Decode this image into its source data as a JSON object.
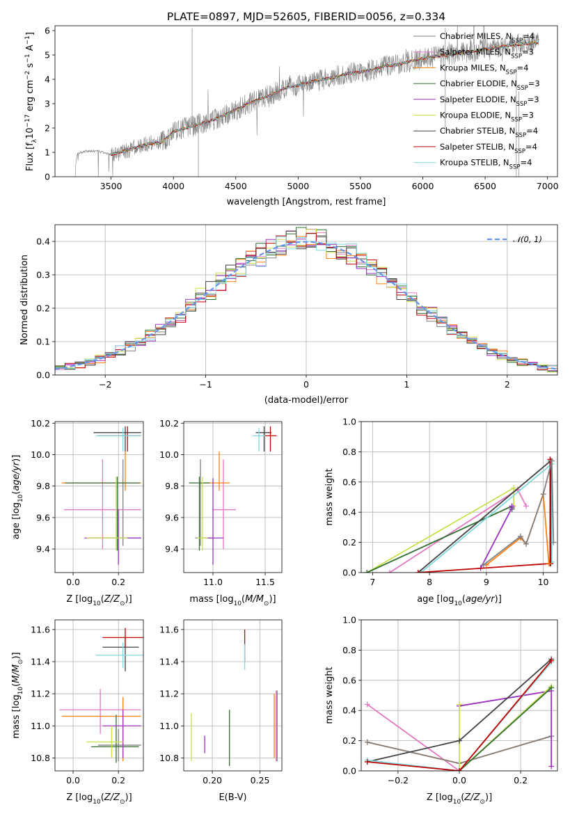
{
  "title": "PLATE=0897, MJD=52605, FIBERID=0056, z=0.334",
  "colors": {
    "chabrier_miles": "#7f7f7f",
    "salpeter_miles": "#e377c2",
    "kroupa_miles": "#ff7f0e",
    "chabrier_elodie": "#2f6f2f",
    "salpeter_elodie": "#9b30c0",
    "kroupa_elodie": "#c8e04a",
    "chabrier_stelib": "#404040",
    "salpeter_stelib": "#c00000",
    "kroupa_stelib": "#80d8e0",
    "gaussian": "#6495ed"
  },
  "legend_labels": [
    {
      "key": "chabrier_miles",
      "text": "Chabrier MILES, N",
      "sub": "SSP",
      "tail": "=4"
    },
    {
      "key": "salpeter_miles",
      "text": "Salpeter MILES, N",
      "sub": "SSP",
      "tail": "=3"
    },
    {
      "key": "kroupa_miles",
      "text": "Kroupa MILES, N",
      "sub": "SSP",
      "tail": "=4"
    },
    {
      "key": "chabrier_elodie",
      "text": "Chabrier ELODIE, N",
      "sub": "SSP",
      "tail": "=3"
    },
    {
      "key": "salpeter_elodie",
      "text": "Salpeter ELODIE, N",
      "sub": "SSP",
      "tail": "=3"
    },
    {
      "key": "kroupa_elodie",
      "text": "Kroupa ELODIE, N",
      "sub": "SSP",
      "tail": "=3"
    },
    {
      "key": "chabrier_stelib",
      "text": "Chabrier STELIB, N",
      "sub": "SSP",
      "tail": "=4"
    },
    {
      "key": "salpeter_stelib",
      "text": "Salpeter STELIB, N",
      "sub": "SSP",
      "tail": "=4"
    },
    {
      "key": "kroupa_stelib",
      "text": "Kroupa STELIB, N",
      "sub": "SSP",
      "tail": "=4"
    }
  ],
  "chart_data": [
    {
      "id": "spectrum",
      "type": "line",
      "xlabel": "wavelength [Angstrom, rest frame]",
      "ylabel": "Flux [f_λ10^-17 erg cm^-2 s^-1 A^-1]",
      "xlim": [
        3050,
        7080
      ],
      "ylim": [
        0,
        6.2
      ],
      "xticks": [
        3500,
        4000,
        4500,
        5000,
        5500,
        6000,
        6500,
        7000
      ],
      "yticks": [
        0,
        1,
        2,
        3,
        4,
        5,
        6
      ],
      "grid": false,
      "legend": "upper-right",
      "model_continuum": [
        [
          3200,
          0
        ],
        [
          3230,
          0.95
        ],
        [
          3300,
          1.05
        ],
        [
          3400,
          1.05
        ],
        [
          3500,
          0.9
        ],
        [
          3600,
          1.05
        ],
        [
          3700,
          1.2
        ],
        [
          3800,
          1.35
        ],
        [
          3900,
          1.4
        ],
        [
          3950,
          1.6
        ],
        [
          4000,
          1.85
        ],
        [
          4100,
          2.0
        ],
        [
          4200,
          2.15
        ],
        [
          4300,
          2.3
        ],
        [
          4400,
          2.5
        ],
        [
          4500,
          2.75
        ],
        [
          4600,
          3.0
        ],
        [
          4700,
          3.2
        ],
        [
          4800,
          3.4
        ],
        [
          4900,
          3.65
        ],
        [
          5000,
          3.75
        ],
        [
          5100,
          3.9
        ],
        [
          5200,
          4.0
        ],
        [
          5300,
          4.1
        ],
        [
          5400,
          4.25
        ],
        [
          5500,
          4.3
        ],
        [
          5600,
          4.4
        ],
        [
          5700,
          4.55
        ],
        [
          5800,
          4.6
        ],
        [
          5900,
          4.75
        ],
        [
          6000,
          4.85
        ],
        [
          6100,
          4.95
        ],
        [
          6200,
          5.0
        ],
        [
          6300,
          5.1
        ],
        [
          6400,
          5.15
        ],
        [
          6500,
          5.25
        ],
        [
          6600,
          5.3
        ],
        [
          6700,
          5.4
        ],
        [
          6800,
          5.45
        ],
        [
          6900,
          5.5
        ]
      ]
    },
    {
      "id": "residuals",
      "type": "histogram",
      "xlabel": "(data-model)/error",
      "ylabel": "Normed distribution",
      "xlim": [
        -2.5,
        2.5
      ],
      "ylim": [
        0,
        0.45
      ],
      "xticks": [
        -2,
        -1,
        0,
        1,
        2
      ],
      "yticks": [
        0.0,
        0.1,
        0.2,
        0.3,
        0.4
      ],
      "grid": true,
      "legend": "upper-right",
      "gaussian_label": "𝒩(0, 1)",
      "bin_width": 0.1
    },
    {
      "id": "age_vs_Z",
      "type": "errorbar",
      "xlabel": "Z [log10(Z/Z⊙)]",
      "ylabel": "age  [log10(age/yr)]",
      "xlim": [
        -0.08,
        0.31
      ],
      "ylim": [
        9.25,
        10.21
      ],
      "xticks": [
        0.0,
        0.2
      ],
      "yticks": [
        9.4,
        9.6,
        9.8,
        10.0,
        10.2
      ],
      "points": [
        {
          "key": "chabrier_miles",
          "x": 0.22,
          "y": 9.47,
          "xerr": [
            0.12,
            0.08
          ],
          "yerr": [
            0.05,
            0.5
          ]
        },
        {
          "key": "salpeter_miles",
          "x": 0.13,
          "y": 9.65,
          "xerr": [
            0.17,
            0.17
          ],
          "yerr": [
            0.25,
            0.32
          ]
        },
        {
          "key": "kroupa_miles",
          "x": 0.23,
          "y": 9.82,
          "xerr": [
            0.28,
            0.07
          ],
          "yerr": [
            0.05,
            0.2
          ]
        },
        {
          "key": "chabrier_elodie",
          "x": 0.195,
          "y": 9.82,
          "xerr": [
            0.23,
            0.1
          ],
          "yerr": [
            0.43,
            0.04
          ]
        },
        {
          "key": "salpeter_elodie",
          "x": 0.2,
          "y": 9.47,
          "xerr": [
            0.15,
            0.1
          ],
          "yerr": [
            0.17,
            0.18
          ]
        },
        {
          "key": "kroupa_elodie",
          "x": 0.19,
          "y": 9.47,
          "xerr": [
            0.13,
            0.05
          ],
          "yerr": [
            0.08,
            0.39
          ]
        },
        {
          "key": "chabrier_stelib",
          "x": 0.23,
          "y": 10.14,
          "xerr": [
            0.14,
            0.07
          ],
          "yerr": [
            0.12,
            0.04
          ]
        },
        {
          "key": "salpeter_stelib",
          "x": 0.24,
          "y": 10.12,
          "xerr": [
            0.13,
            0.06
          ],
          "yerr": [
            0.1,
            0.06
          ]
        },
        {
          "key": "kroupa_stelib",
          "x": 0.22,
          "y": 10.12,
          "xerr": [
            0.12,
            0.08
          ],
          "yerr": [
            0.1,
            0.05
          ]
        }
      ]
    },
    {
      "id": "age_vs_mass",
      "type": "errorbar",
      "xlabel": "mass [log10(M/M⊙)]",
      "ylabel": "",
      "xlim": [
        10.72,
        11.66
      ],
      "ylim": [
        9.25,
        10.21
      ],
      "xticks": [
        11.0,
        11.5
      ],
      "yticks": [
        9.4,
        9.6,
        9.8,
        10.0,
        10.2
      ],
      "points": [
        {
          "key": "chabrier_miles",
          "x": 10.88,
          "y": 9.47,
          "xerr": [
            0.05,
            0.1
          ],
          "yerr": [
            0.05,
            0.5
          ]
        },
        {
          "key": "salpeter_miles",
          "x": 11.1,
          "y": 9.65,
          "xerr": [
            0.1,
            0.12
          ],
          "yerr": [
            0.25,
            0.32
          ]
        },
        {
          "key": "kroupa_miles",
          "x": 11.06,
          "y": 9.82,
          "xerr": [
            0.2,
            0.1
          ],
          "yerr": [
            0.05,
            0.2
          ]
        },
        {
          "key": "chabrier_elodie",
          "x": 10.87,
          "y": 9.82,
          "xerr": [
            0.1,
            0.1
          ],
          "yerr": [
            0.43,
            0.04
          ]
        },
        {
          "key": "salpeter_elodie",
          "x": 11.0,
          "y": 9.47,
          "xerr": [
            0.1,
            0.1
          ],
          "yerr": [
            0.17,
            0.38
          ]
        },
        {
          "key": "kroupa_elodie",
          "x": 10.9,
          "y": 9.47,
          "xerr": [
            0.05,
            0.05
          ],
          "yerr": [
            0.08,
            0.39
          ]
        },
        {
          "key": "chabrier_stelib",
          "x": 11.49,
          "y": 10.14,
          "xerr": [
            0.08,
            0.07
          ],
          "yerr": [
            0.12,
            0.04
          ]
        },
        {
          "key": "salpeter_stelib",
          "x": 11.55,
          "y": 10.12,
          "xerr": [
            0.06,
            0.06
          ],
          "yerr": [
            0.1,
            0.06
          ]
        },
        {
          "key": "kroupa_stelib",
          "x": 11.44,
          "y": 10.12,
          "xerr": [
            0.06,
            0.06
          ],
          "yerr": [
            0.1,
            0.05
          ]
        }
      ]
    },
    {
      "id": "mass_weight_vs_age",
      "type": "line",
      "xlabel": "age  [log10(age/yr)]",
      "ylabel": "mass weight",
      "xlim": [
        6.8,
        10.25
      ],
      "ylim": [
        0,
        1.0
      ],
      "xticks": [
        7,
        8,
        9,
        10
      ],
      "yticks": [
        0.0,
        0.2,
        0.4,
        0.6,
        0.8,
        1.0
      ],
      "grid": true,
      "series": [
        {
          "key": "salpeter_miles",
          "x": [
            7.3,
            9.55,
            9.7
          ],
          "y": [
            0.0,
            0.55,
            0.44
          ]
        },
        {
          "key": "kroupa_elodie",
          "x": [
            6.9,
            9.48,
            9.48
          ],
          "y": [
            0.0,
            0.56,
            0.44
          ]
        },
        {
          "key": "chabrier_elodie",
          "x": [
            6.9,
            9.45,
            9.45
          ],
          "y": [
            0.0,
            0.44,
            0.42
          ]
        },
        {
          "key": "salpeter_elodie",
          "x": [
            8.9,
            9.45,
            9.45
          ],
          "y": [
            0.03,
            0.43,
            0.44
          ]
        },
        {
          "key": "kroupa_stelib",
          "x": [
            7.85,
            10.15,
            10.15
          ],
          "y": [
            0.0,
            0.72,
            0.07
          ]
        },
        {
          "key": "chabrier_stelib",
          "x": [
            7.8,
            10.13,
            10.13
          ],
          "y": [
            0.0,
            0.74,
            0.06
          ]
        },
        {
          "key": "salpeter_stelib",
          "x": [
            7.8,
            10.12,
            10.12
          ],
          "y": [
            0.0,
            0.06,
            0.75
          ]
        },
        {
          "key": "kroupa_miles",
          "x": [
            9.0,
            9.6,
            9.7,
            10.0,
            10.1
          ],
          "y": [
            0.05,
            0.23,
            0.19,
            0.52,
            0.06
          ]
        },
        {
          "key": "chabrier_miles",
          "x": [
            8.95,
            9.6,
            9.7,
            10.0,
            10.15,
            10.18
          ],
          "y": [
            0.05,
            0.24,
            0.19,
            0.52,
            0.74,
            0.2
          ]
        }
      ]
    },
    {
      "id": "mass_vs_Z",
      "type": "errorbar",
      "xlabel": "Z [log10(Z/Z⊙)]",
      "ylabel": "mass [log10(M/M⊙)]",
      "xlim": [
        -0.08,
        0.31
      ],
      "ylim": [
        10.72,
        11.66
      ],
      "xticks": [
        0.0,
        0.2
      ],
      "yticks": [
        10.8,
        11.0,
        11.2,
        11.4,
        11.6
      ],
      "points": [
        {
          "key": "chabrier_miles",
          "x": 0.2,
          "y": 10.88,
          "xerr": [
            0.09,
            0.1
          ],
          "yerr": [
            0.1,
            0.1
          ]
        },
        {
          "key": "salpeter_miles",
          "x": 0.12,
          "y": 11.1,
          "xerr": [
            0.18,
            0.18
          ],
          "yerr": [
            0.15,
            0.13
          ]
        },
        {
          "key": "kroupa_miles",
          "x": 0.22,
          "y": 11.06,
          "xerr": [
            0.27,
            0.08
          ],
          "yerr": [
            0.28,
            0.12
          ]
        },
        {
          "key": "chabrier_elodie",
          "x": 0.19,
          "y": 10.87,
          "xerr": [
            0.11,
            0.1
          ],
          "yerr": [
            0.1,
            0.2
          ]
        },
        {
          "key": "salpeter_elodie",
          "x": 0.22,
          "y": 11.0,
          "xerr": [
            0.09,
            0.08
          ],
          "yerr": [
            0.2,
            0.1
          ]
        },
        {
          "key": "kroupa_elodie",
          "x": 0.17,
          "y": 10.9,
          "xerr": [
            0.11,
            0.05
          ],
          "yerr": [
            0.1,
            0.1
          ]
        },
        {
          "key": "chabrier_stelib",
          "x": 0.23,
          "y": 11.49,
          "xerr": [
            0.1,
            0.06
          ],
          "yerr": [
            0.15,
            0.06
          ]
        },
        {
          "key": "salpeter_stelib",
          "x": 0.23,
          "y": 11.55,
          "xerr": [
            0.1,
            0.08
          ],
          "yerr": [
            0.06,
            0.06
          ]
        },
        {
          "key": "kroupa_stelib",
          "x": 0.22,
          "y": 11.44,
          "xerr": [
            0.12,
            0.09
          ],
          "yerr": [
            0.08,
            0.08
          ]
        }
      ]
    },
    {
      "id": "mass_vs_EBV",
      "type": "errorbar",
      "xlabel": "E(B-V)",
      "ylabel": "",
      "xlim": [
        0.17,
        0.273
      ],
      "ylim": [
        10.72,
        11.66
      ],
      "xticks": [
        0.2,
        0.25
      ],
      "yticks": [
        10.8,
        11.0,
        11.2,
        11.4,
        11.6
      ],
      "points": [
        {
          "key": "kroupa_elodie",
          "x": 0.178,
          "y": 10.93,
          "xerr": [
            0,
            0
          ],
          "yerr": [
            0.15,
            0.15
          ]
        },
        {
          "key": "salpeter_elodie",
          "x": 0.192,
          "y": 10.88,
          "xerr": [
            0,
            0
          ],
          "yerr": [
            0.05,
            0.06
          ]
        },
        {
          "key": "chabrier_elodie",
          "x": 0.218,
          "y": 10.95,
          "xerr": [
            0,
            0
          ],
          "yerr": [
            0.2,
            0.15
          ]
        },
        {
          "key": "salpeter_stelib",
          "x": 0.234,
          "y": 11.5,
          "xerr": [
            0,
            0
          ],
          "yerr": [
            0.1,
            0.1
          ]
        },
        {
          "key": "kroupa_stelib",
          "x": 0.234,
          "y": 11.42,
          "xerr": [
            0,
            0
          ],
          "yerr": [
            0.07,
            0.09
          ]
        },
        {
          "key": "kroupa_miles",
          "x": 0.265,
          "y": 11.0,
          "xerr": [
            0,
            0
          ],
          "yerr": [
            0.2,
            0.2
          ]
        },
        {
          "key": "salpeter_miles",
          "x": 0.267,
          "y": 11.0,
          "xerr": [
            0,
            0
          ],
          "yerr": [
            0.22,
            0.22
          ]
        },
        {
          "key": "chabrier_miles",
          "x": 0.268,
          "y": 11.0,
          "xerr": [
            0,
            0
          ],
          "yerr": [
            0.22,
            0.22
          ]
        }
      ]
    },
    {
      "id": "mass_weight_vs_Z",
      "type": "line",
      "xlabel": "Z [log10(Z/Z⊙)]",
      "ylabel": "mass weight",
      "xlim": [
        -0.32,
        0.32
      ],
      "ylim": [
        0,
        1.0
      ],
      "xticks": [
        -0.2,
        0.0,
        0.2
      ],
      "yticks": [
        0.0,
        0.2,
        0.4,
        0.6,
        0.8,
        1.0
      ],
      "grid": true,
      "series": [
        {
          "key": "salpeter_miles",
          "x": [
            -0.3,
            0.0,
            0.3
          ],
          "y": [
            0.44,
            0.0,
            0.56
          ]
        },
        {
          "key": "kroupa_miles",
          "x": [
            -0.3,
            0.0,
            0.3
          ],
          "y": [
            0.19,
            0.05,
            0.23
          ]
        },
        {
          "key": "chabrier_miles",
          "x": [
            -0.3,
            0.0,
            0.3
          ],
          "y": [
            0.19,
            0.05,
            0.23
          ]
        },
        {
          "key": "salpeter_elodie",
          "x": [
            0.0,
            0.3,
            0.3
          ],
          "y": [
            0.43,
            0.53,
            0.03
          ]
        },
        {
          "key": "kroupa_elodie",
          "x": [
            0.0,
            0.0,
            0.3
          ],
          "y": [
            0.44,
            0.0,
            0.56
          ]
        },
        {
          "key": "chabrier_elodie",
          "x": [
            0.0,
            0.3
          ],
          "y": [
            0.0,
            0.55
          ]
        },
        {
          "key": "chabrier_stelib",
          "x": [
            -0.3,
            0.0,
            0.3
          ],
          "y": [
            0.06,
            0.2,
            0.74
          ]
        },
        {
          "key": "kroupa_stelib",
          "x": [
            -0.3,
            0.0,
            0.3
          ],
          "y": [
            0.07,
            0.0,
            0.72
          ]
        },
        {
          "key": "salpeter_stelib",
          "x": [
            -0.3,
            0.0,
            0.3
          ],
          "y": [
            0.06,
            0.0,
            0.73
          ]
        }
      ]
    }
  ]
}
